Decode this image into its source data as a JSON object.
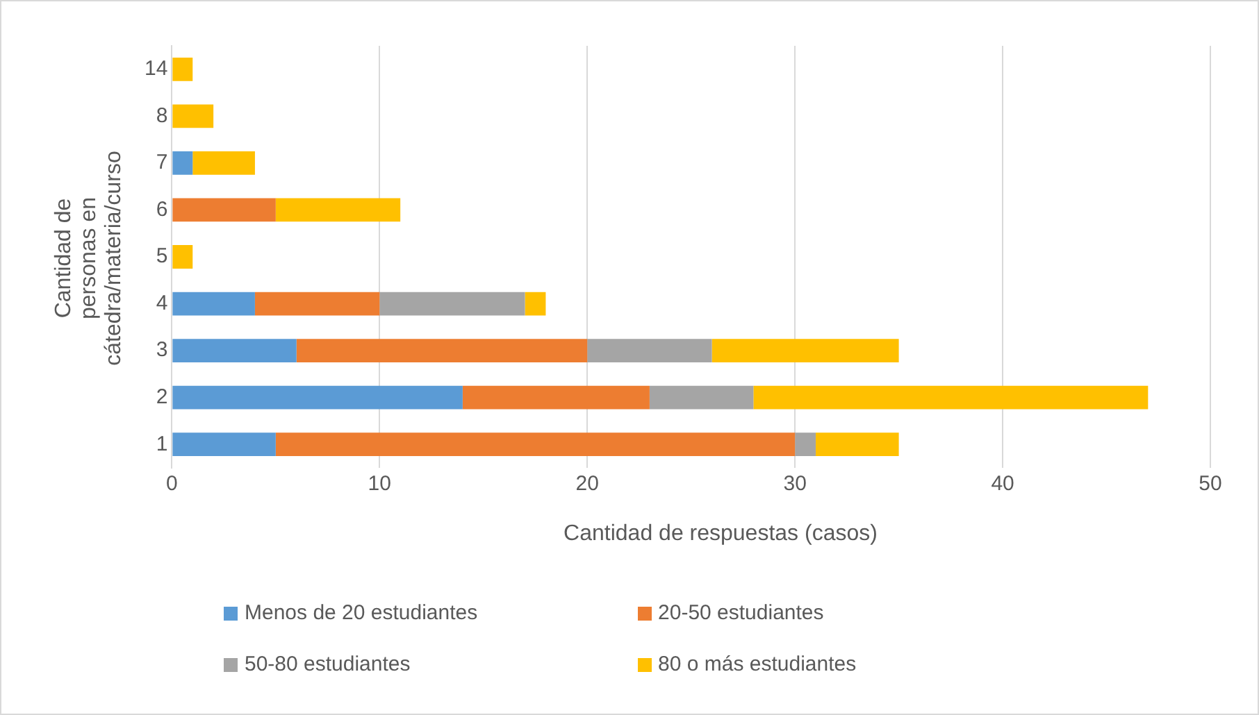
{
  "chart_data": {
    "type": "bar",
    "orientation": "horizontal",
    "stacked": true,
    "xlabel": "Cantidad de respuestas (casos)",
    "ylabel": "Cantidad de personas en cátedra/materia/curso",
    "categories": [
      "14",
      "8",
      "7",
      "6",
      "5",
      "4",
      "3",
      "2",
      "1"
    ],
    "series": [
      {
        "name": "Menos de 20 estudiantes",
        "color": "#5b9bd5",
        "values": [
          null,
          null,
          1,
          null,
          null,
          4,
          6,
          14,
          5
        ]
      },
      {
        "name": "20-50 estudiantes",
        "color": "#ed7d31",
        "values": [
          null,
          null,
          null,
          5,
          null,
          6,
          14,
          9,
          25
        ]
      },
      {
        "name": "50-80 estudiantes",
        "color": "#a5a5a5",
        "values": [
          null,
          null,
          null,
          null,
          null,
          7,
          6,
          5,
          1
        ]
      },
      {
        "name": "80 o más estudiantes",
        "color": "#ffc000",
        "values": [
          1,
          2,
          3,
          6,
          1,
          1,
          9,
          19,
          4
        ]
      }
    ],
    "xlim": [
      0,
      50
    ],
    "xticks": [
      0,
      10,
      20,
      30,
      40,
      50
    ],
    "grid": "x",
    "legend": "bottom"
  }
}
